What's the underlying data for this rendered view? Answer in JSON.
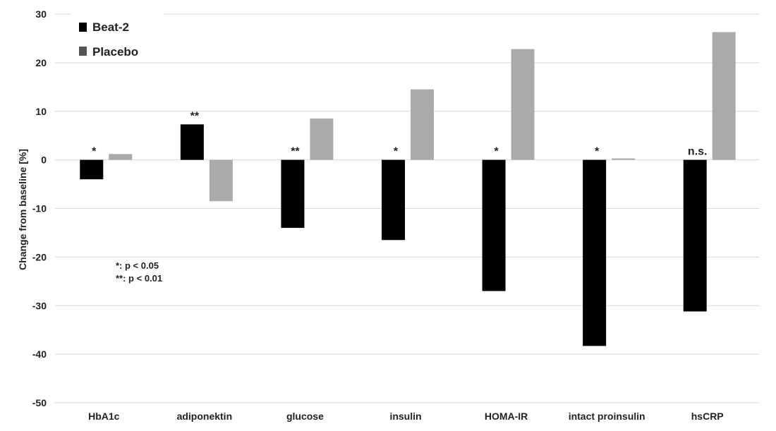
{
  "chart_data": {
    "type": "bar",
    "ylabel": "Change from baseline [%]",
    "ylim": [
      -50,
      30
    ],
    "yticks": [
      30,
      20,
      10,
      0,
      -10,
      -20,
      -30,
      -40,
      -50
    ],
    "grid": true,
    "legend_position": "top-left",
    "categories": [
      "HbA1c",
      "adiponektin",
      "glucose",
      "insulin",
      "HOMA-IR",
      "intact proinsulin",
      "hsCRP"
    ],
    "series": [
      {
        "name": "Beat-2",
        "color": "#000000",
        "values": [
          -4,
          7.3,
          -14,
          -16.5,
          -27,
          -38.3,
          -31.2
        ]
      },
      {
        "name": "Placebo",
        "color": "#aaaaaa",
        "values": [
          1.2,
          -8.5,
          8.5,
          14.5,
          22.8,
          0.3,
          26.3
        ]
      }
    ],
    "significance": [
      "*",
      "**",
      "**",
      "*",
      "*",
      "*",
      "n.s."
    ],
    "notes": [
      "*:  p < 0.05",
      "**: p < 0.01"
    ]
  }
}
